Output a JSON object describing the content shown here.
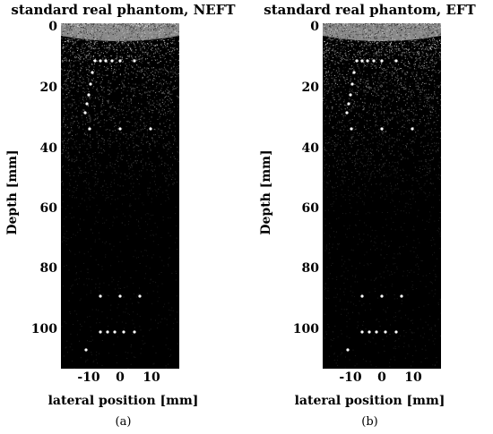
{
  "panels": [
    {
      "title": "standard real phantom, NEFT",
      "ylabel": "Depth [mm]",
      "xlabel": "lateral position [mm]",
      "caption": "(a)",
      "yticks": [
        "0",
        "20",
        "40",
        "60",
        "80",
        "100"
      ],
      "xticks": [
        "-10",
        "0",
        "10"
      ]
    },
    {
      "title": "standard real phantom, EFT",
      "ylabel": "Depth [mm]",
      "xlabel": "lateral position [mm]",
      "caption": "(b)",
      "yticks": [
        "0",
        "20",
        "40",
        "60",
        "80",
        "100"
      ],
      "xticks": [
        "-10",
        "0",
        "10"
      ]
    }
  ],
  "axes": {
    "depth_range_mm": [
      0,
      113
    ],
    "lateral_range_mm": [
      -19,
      19
    ]
  },
  "colors": {
    "image_background": "#000000",
    "speckle": "#ffffff"
  }
}
